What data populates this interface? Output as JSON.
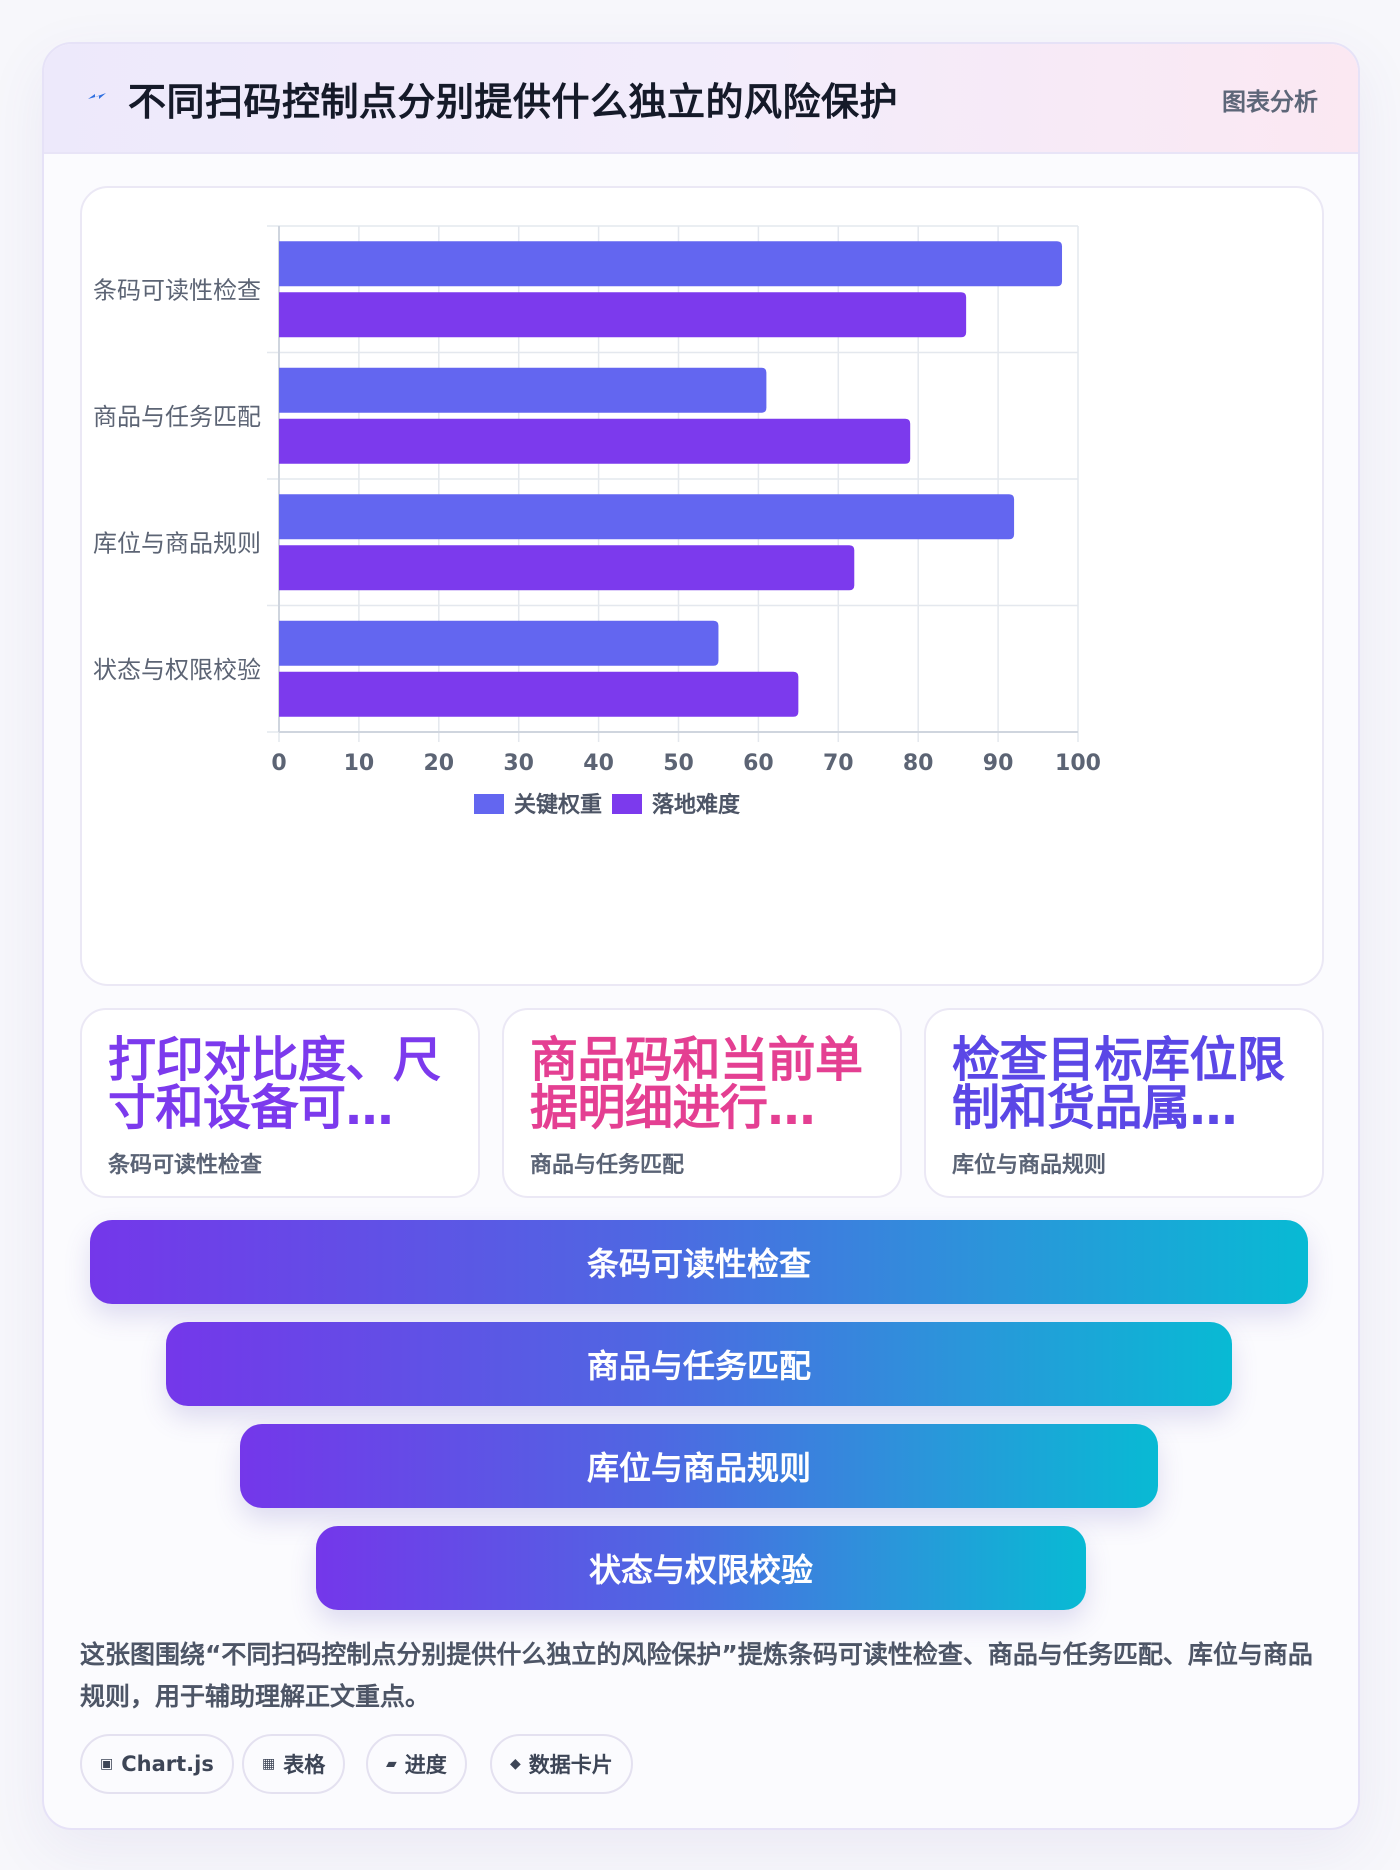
{
  "header": {
    "title": "不同扫码控制点分别提供什么独立的风险保护",
    "tag": "图表分析",
    "icon": "lightning-icon"
  },
  "chart_data": {
    "type": "bar",
    "orientation": "horizontal",
    "categories": [
      "条码可读性检查",
      "商品与任务匹配",
      "库位与商品规则",
      "状态与权限校验"
    ],
    "series": [
      {
        "name": "关键权重",
        "values": [
          98,
          61,
          92,
          55
        ],
        "color": "#6366f0"
      },
      {
        "name": "落地难度",
        "values": [
          86,
          79,
          72,
          65
        ],
        "color": "#7c3aed"
      }
    ],
    "xlim": [
      0,
      100
    ],
    "xticks": [
      0,
      10,
      20,
      30,
      40,
      50,
      60,
      70,
      80,
      90,
      100
    ],
    "grid": true,
    "legend": "bottom"
  },
  "stats": [
    {
      "text": "打印对比度、尺寸和设备可…",
      "label": "条码可读性检查",
      "color": "#7c3aed"
    },
    {
      "text": "商品码和当前单据明细进行…",
      "label": "商品与任务匹配",
      "color": "#e43f92"
    },
    {
      "text": "检查目标库位限制和货品属…",
      "label": "库位与商品规则",
      "color": "#5b47e6"
    }
  ],
  "funnel": [
    "条码可读性检查",
    "商品与任务匹配",
    "库位与商品规则",
    "状态与权限校验"
  ],
  "description": "这张图围绕“不同扫码控制点分别提供什么独立的风险保护”提炼条码可读性检查、商品与任务匹配、库位与商品规则，用于辅助理解正文重点。",
  "chips": [
    {
      "icon": "▣",
      "label": "Chart.js"
    },
    {
      "icon": "▦",
      "label": "表格"
    },
    {
      "icon": "▰",
      "label": "进度"
    },
    {
      "icon": "◆",
      "label": "数据卡片"
    }
  ]
}
